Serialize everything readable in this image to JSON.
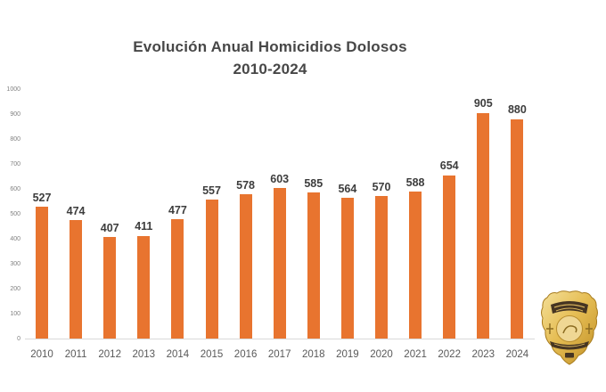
{
  "title": {
    "line1": "Evolución Anual Homicidios Dolosos",
    "line2": "2010-2024"
  },
  "chart_data": {
    "type": "bar",
    "title": "Evolución Anual Homicidios Dolosos 2010-2024",
    "categories": [
      "2010",
      "2011",
      "2012",
      "2013",
      "2014",
      "2015",
      "2016",
      "2017",
      "2018",
      "2019",
      "2020",
      "2021",
      "2022",
      "2023",
      "2024"
    ],
    "values": [
      527,
      474,
      407,
      411,
      477,
      557,
      578,
      603,
      585,
      564,
      570,
      588,
      654,
      905,
      880
    ],
    "xlabel": "",
    "ylabel": "",
    "ylim": [
      0,
      1000
    ],
    "yticks": [
      0,
      100,
      200,
      300,
      400,
      500,
      600,
      700,
      800,
      900,
      1000
    ],
    "grid": false,
    "legend": false,
    "value_labels_shown": true,
    "bar_color": "#E8742F"
  },
  "colors": {
    "background": "#FFFFFF",
    "bar": "#E8742F",
    "title_text": "#474747",
    "value_label": "#3D3D3D",
    "year_label": "#595959",
    "ytick_label": "#818181",
    "axis_line": "#D9D9D9",
    "badge_gold": "#E6BE55",
    "badge_gold_light": "#F4E09A",
    "badge_gold_dark": "#C08F25",
    "badge_banner": "#463522"
  },
  "icons": {
    "badge": "police-badge-icon"
  }
}
